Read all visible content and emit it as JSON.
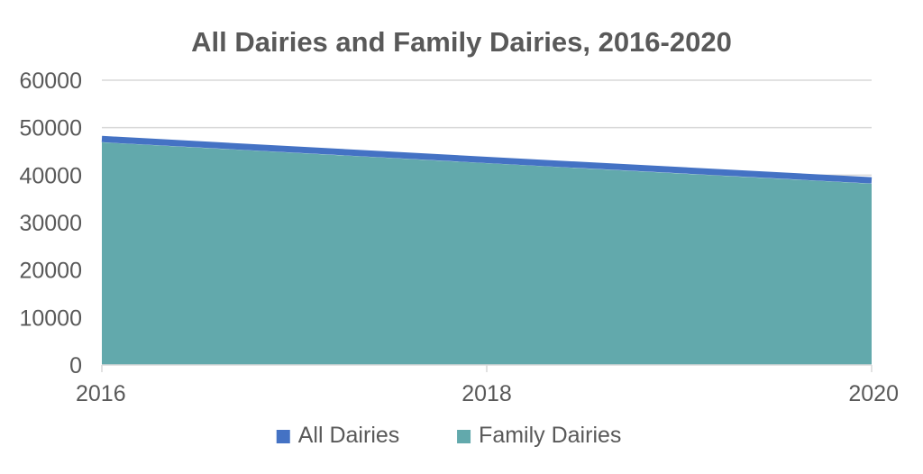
{
  "chart_data": {
    "type": "area",
    "title": "All Dairies and Family Dairies, 2016-2020",
    "xlabel": "",
    "ylabel": "",
    "x": [
      2016,
      2018,
      2020
    ],
    "x_tick_labels": [
      "2016",
      "2018",
      "2020"
    ],
    "y_tick_labels": [
      "0",
      "10000",
      "20000",
      "30000",
      "40000",
      "50000",
      "60000"
    ],
    "ylim": [
      0,
      60000
    ],
    "grid": true,
    "legend_position": "bottom",
    "series": [
      {
        "name": "All Dairies",
        "values": [
          47600,
          43200,
          38900
        ],
        "color": "#4472c4",
        "style": "line"
      },
      {
        "name": "Family Dairies",
        "values": [
          46900,
          42500,
          38200
        ],
        "color": "#62a9ac",
        "style": "area"
      }
    ]
  }
}
